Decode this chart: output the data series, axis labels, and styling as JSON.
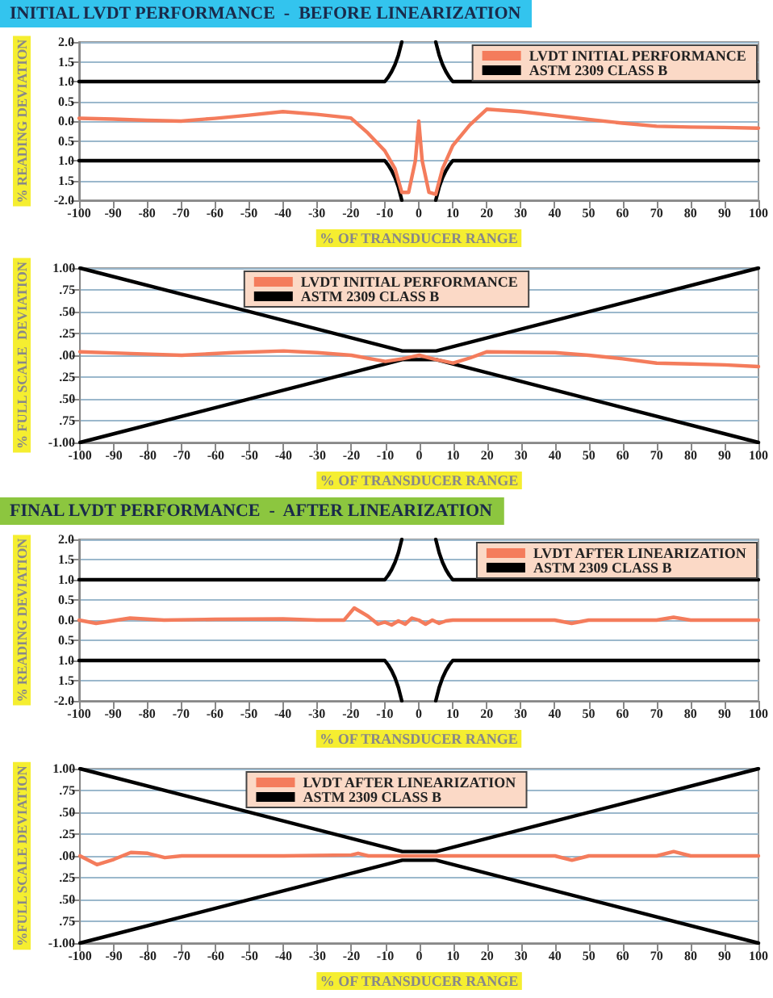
{
  "chart_data": [
    {
      "type": "line",
      "title": "INITIAL LVDT PERFORMANCE  -  BEFORE LINEARIZATION",
      "xlabel": "% OF TRANSDUCER RANGE",
      "ylabel": "% READING DEVIATION",
      "xlim": [
        -100,
        100
      ],
      "xticks": [
        -100,
        -90,
        -80,
        -70,
        -60,
        -50,
        -40,
        -30,
        -20,
        -10,
        0,
        10,
        20,
        30,
        40,
        50,
        60,
        70,
        80,
        90,
        100
      ],
      "ylim": [
        -2,
        2
      ],
      "yticks": [
        {
          "value": -2,
          "label": "-2.0"
        },
        {
          "value": -1.5,
          "label": "1.5"
        },
        {
          "value": -1,
          "label": "1.0"
        },
        {
          "value": -0.5,
          "label": "0.5"
        },
        {
          "value": 0,
          "label": "0.0"
        },
        {
          "value": 0.5,
          "label": "0.5"
        },
        {
          "value": 1,
          "label": "1.0"
        },
        {
          "value": 1.5,
          "label": "1.5"
        },
        {
          "value": 2,
          "label": "2.0"
        }
      ],
      "grid": "y",
      "legend": "top right",
      "marker": "none",
      "series": [
        {
          "name": "LVDT INITIAL PERFORMANCE",
          "color": "#f47c5c",
          "x": [
            -100,
            -90,
            -80,
            -70,
            -60,
            -50,
            -40,
            -30,
            -20,
            -15,
            -10,
            -7,
            -5,
            -3,
            -1,
            0,
            1,
            3,
            5,
            7,
            10,
            15,
            20,
            30,
            40,
            50,
            60,
            70,
            80,
            90,
            100
          ],
          "values": [
            0.07,
            0.05,
            0.02,
            0.0,
            0.07,
            0.15,
            0.24,
            0.17,
            0.08,
            -0.3,
            -0.75,
            -1.2,
            -1.8,
            -1.8,
            -1.0,
            0.0,
            -1.0,
            -1.8,
            -1.85,
            -1.2,
            -0.62,
            -0.1,
            0.3,
            0.24,
            0.14,
            0.04,
            -0.05,
            -0.13,
            -0.15,
            -0.16,
            -0.18
          ]
        },
        {
          "name": "ASTM 2309 CLASS B",
          "color": "#000000",
          "x": [
            -100,
            -10,
            -9,
            -8,
            -7,
            -6,
            -5,
            null,
            5,
            6,
            7,
            8,
            9,
            10,
            100
          ],
          "values": [
            1,
            1,
            1.11,
            1.25,
            1.43,
            1.67,
            2,
            null,
            2,
            1.67,
            1.43,
            1.25,
            1.11,
            1,
            1
          ]
        },
        {
          "color": "#000000",
          "x": [
            -100,
            -10,
            -9,
            -8,
            -7,
            -6,
            -5,
            null,
            5,
            6,
            7,
            8,
            9,
            10,
            100
          ],
          "values": [
            -1,
            -1,
            -1.11,
            -1.25,
            -1.43,
            -1.67,
            -2,
            null,
            -2,
            -1.67,
            -1.43,
            -1.25,
            -1.11,
            -1,
            -1
          ]
        }
      ]
    },
    {
      "type": "line",
      "xlabel": "% OF TRANSDUCER RANGE",
      "ylabel": "% FULL SCALE  DEVIATION",
      "xlim": [
        -100,
        100
      ],
      "xticks": [
        -100,
        -90,
        -80,
        -70,
        -60,
        -50,
        -40,
        -30,
        -20,
        -10,
        0,
        10,
        20,
        30,
        40,
        50,
        60,
        70,
        80,
        90,
        100
      ],
      "ylim": [
        -1,
        1
      ],
      "yticks": [
        {
          "value": -1,
          "label": "-1.00"
        },
        {
          "value": -0.75,
          "label": ".75"
        },
        {
          "value": -0.5,
          "label": ".50"
        },
        {
          "value": -0.25,
          "label": ".25"
        },
        {
          "value": 0,
          "label": ".00"
        },
        {
          "value": 0.25,
          "label": ".25"
        },
        {
          "value": 0.5,
          "label": ".50"
        },
        {
          "value": 0.75,
          "label": ".75"
        },
        {
          "value": 1,
          "label": "1.00"
        }
      ],
      "grid": "y",
      "legend": "top",
      "marker": "none",
      "series": [
        {
          "name": "LVDT INITIAL PERFORMANCE",
          "color": "#f47c5c",
          "x": [
            -100,
            -85,
            -70,
            -55,
            -40,
            -30,
            -20,
            -10,
            -5,
            0,
            5,
            10,
            15,
            20,
            40,
            50,
            60,
            70,
            80,
            90,
            100
          ],
          "values": [
            0.04,
            0.02,
            0.0,
            0.03,
            0.05,
            0.03,
            0.0,
            -0.07,
            -0.04,
            0.0,
            -0.05,
            -0.09,
            -0.03,
            0.04,
            0.03,
            0.0,
            -0.04,
            -0.09,
            -0.1,
            -0.11,
            -0.13
          ]
        },
        {
          "name": "ASTM 2309 CLASS B",
          "color": "#000000",
          "x": [
            -100,
            -5,
            5,
            100
          ],
          "values": [
            1,
            0.05,
            0.05,
            1
          ]
        },
        {
          "color": "#000000",
          "x": [
            -100,
            -5,
            5,
            100
          ],
          "values": [
            -1,
            -0.05,
            -0.05,
            -1
          ]
        }
      ]
    },
    {
      "type": "line",
      "title": "FINAL LVDT PERFORMANCE  -  AFTER LINEARIZATION",
      "xlabel": "% OF TRANSDUCER RANGE",
      "ylabel": "% READING DEVIATION",
      "xlim": [
        -100,
        100
      ],
      "xticks": [
        -100,
        -90,
        -80,
        -70,
        -60,
        -50,
        -40,
        -30,
        -20,
        -10,
        0,
        10,
        20,
        30,
        40,
        50,
        60,
        70,
        80,
        90,
        100
      ],
      "ylim": [
        -2,
        2
      ],
      "yticks": [
        {
          "value": -2,
          "label": "-2.0"
        },
        {
          "value": -1.5,
          "label": "1.5"
        },
        {
          "value": -1,
          "label": "1.0"
        },
        {
          "value": -0.5,
          "label": "0.5"
        },
        {
          "value": 0,
          "label": "0.0"
        },
        {
          "value": 0.5,
          "label": "0.5"
        },
        {
          "value": 1,
          "label": "1.0"
        },
        {
          "value": 1.5,
          "label": "1.5"
        },
        {
          "value": 2,
          "label": "2.0"
        }
      ],
      "grid": "y",
      "legend": "top right",
      "marker": "none",
      "series": [
        {
          "name": "LVDT AFTER LINEARIZATION",
          "color": "#f47c5c",
          "x": [
            -100,
            -95,
            -85,
            -75,
            -60,
            -40,
            -30,
            -22,
            -19,
            -15,
            -12,
            -10,
            -8,
            -6,
            -4,
            -2,
            0,
            2,
            4,
            6,
            8,
            10,
            40,
            45,
            50,
            70,
            75,
            80,
            100
          ],
          "values": [
            0.0,
            -0.08,
            0.05,
            0.0,
            0.02,
            0.03,
            0.0,
            0.0,
            0.3,
            0.1,
            -0.1,
            -0.05,
            -0.12,
            -0.02,
            -0.1,
            0.05,
            0.0,
            -0.1,
            0.0,
            -0.08,
            -0.02,
            0.0,
            0.0,
            -0.08,
            0.0,
            0.0,
            0.07,
            0.0,
            0.0
          ]
        },
        {
          "name": "ASTM 2309 CLASS B",
          "color": "#000000",
          "x": [
            -100,
            -10,
            -9,
            -8,
            -7,
            -6,
            -5,
            null,
            5,
            6,
            7,
            8,
            9,
            10,
            100
          ],
          "values": [
            1,
            1,
            1.11,
            1.25,
            1.43,
            1.67,
            2,
            null,
            2,
            1.67,
            1.43,
            1.25,
            1.11,
            1,
            1
          ]
        },
        {
          "color": "#000000",
          "x": [
            -100,
            -10,
            -9,
            -8,
            -7,
            -6,
            -5,
            null,
            5,
            6,
            7,
            8,
            9,
            10,
            100
          ],
          "values": [
            -1,
            -1,
            -1.11,
            -1.25,
            -1.43,
            -1.67,
            -2,
            null,
            -2,
            -1.67,
            -1.43,
            -1.25,
            -1.11,
            -1,
            -1
          ]
        }
      ]
    },
    {
      "type": "line",
      "xlabel": "% OF TRANSDUCER RANGE",
      "ylabel": "%FULL SCALE DEVIATION",
      "xlim": [
        -100,
        100
      ],
      "xticks": [
        -100,
        -90,
        -80,
        -70,
        -60,
        -50,
        -40,
        -30,
        -20,
        -10,
        0,
        10,
        20,
        30,
        40,
        50,
        60,
        70,
        80,
        90,
        100
      ],
      "ylim": [
        -1,
        1
      ],
      "yticks": [
        {
          "value": -1,
          "label": "-1.00"
        },
        {
          "value": -0.75,
          "label": ".75"
        },
        {
          "value": -0.5,
          "label": ".50"
        },
        {
          "value": -0.25,
          "label": ".25"
        },
        {
          "value": 0,
          "label": ".00"
        },
        {
          "value": 0.25,
          "label": ".25"
        },
        {
          "value": 0.5,
          "label": ".50"
        },
        {
          "value": 0.75,
          "label": ".75"
        },
        {
          "value": 1,
          "label": "1.00"
        }
      ],
      "grid": "y",
      "legend": "top",
      "marker": "none",
      "series": [
        {
          "name": "LVDT AFTER LINEARIZATION",
          "color": "#f47c5c",
          "x": [
            -100,
            -95,
            -90,
            -85,
            -80,
            -75,
            -70,
            -40,
            -20,
            -18,
            -15,
            0,
            40,
            45,
            50,
            70,
            75,
            80,
            100
          ],
          "values": [
            0.0,
            -0.1,
            -0.04,
            0.04,
            0.03,
            -0.02,
            0.0,
            0.0,
            0.01,
            0.03,
            0.0,
            0.0,
            0.0,
            -0.05,
            0.0,
            0.0,
            0.05,
            0.0,
            0.0
          ]
        },
        {
          "name": "ASTM 2309 CLASS B",
          "color": "#000000",
          "x": [
            -100,
            -5,
            5,
            100
          ],
          "values": [
            1,
            0.05,
            0.05,
            1
          ]
        },
        {
          "color": "#000000",
          "x": [
            -100,
            -5,
            5,
            100
          ],
          "values": [
            -1,
            -0.05,
            -0.05,
            -1
          ]
        }
      ]
    }
  ]
}
